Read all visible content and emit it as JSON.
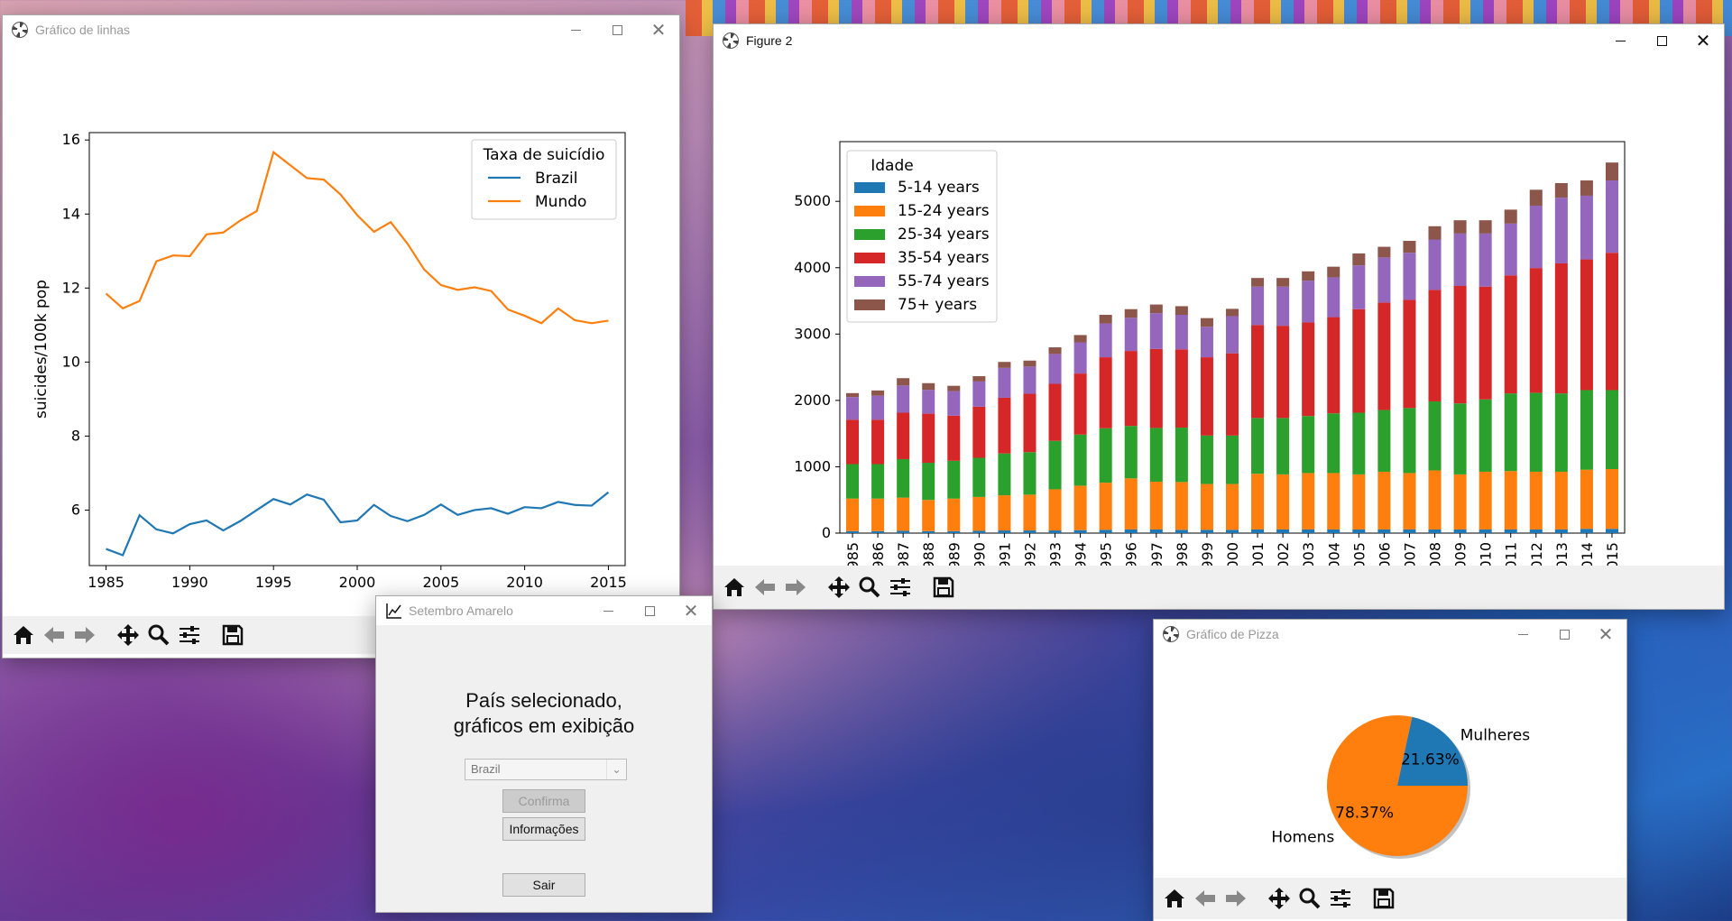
{
  "desktop": {
    "accent": "#e85a2a"
  },
  "line_window": {
    "title": "Gráfico de linhas",
    "chart_data": {
      "type": "line",
      "ylabel": "suicides/100k pop",
      "xlabel": "",
      "ylim": [
        4.5,
        16.2
      ],
      "xlim": [
        1984,
        2016
      ],
      "yticks": [
        "6",
        "8",
        "10",
        "12",
        "14",
        "16"
      ],
      "xticks": [
        "1985",
        "1990",
        "1995",
        "2000",
        "2005",
        "2010",
        "2015"
      ],
      "legend_title": "Taxa de suicídio",
      "legend_placement": "top-right",
      "x": [
        1985,
        1986,
        1987,
        1988,
        1989,
        1990,
        1991,
        1992,
        1993,
        1994,
        1995,
        1996,
        1997,
        1998,
        1999,
        2000,
        2001,
        2002,
        2003,
        2004,
        2005,
        2006,
        2007,
        2008,
        2009,
        2010,
        2011,
        2012,
        2013,
        2014,
        2015
      ],
      "series": [
        {
          "name": "Brazil",
          "color": "#1f77b4",
          "values": [
            4.95,
            4.78,
            5.86,
            5.48,
            5.37,
            5.62,
            5.72,
            5.45,
            5.7,
            6.0,
            6.3,
            6.15,
            6.42,
            6.28,
            5.67,
            5.72,
            6.14,
            5.84,
            5.7,
            5.87,
            6.15,
            5.87,
            6.0,
            6.05,
            5.9,
            6.08,
            6.05,
            6.22,
            6.14,
            6.12,
            6.48
          ]
        },
        {
          "name": "Mundo",
          "color": "#ff7f0e",
          "values": [
            11.85,
            11.45,
            11.65,
            12.72,
            12.88,
            12.86,
            13.45,
            13.5,
            13.82,
            14.08,
            15.67,
            15.32,
            14.97,
            14.93,
            14.53,
            13.97,
            13.52,
            13.78,
            13.2,
            12.5,
            12.08,
            11.95,
            12.02,
            11.92,
            11.42,
            11.25,
            11.05,
            11.45,
            11.13,
            11.05,
            11.12
          ]
        }
      ]
    }
  },
  "bar_window": {
    "title": "Figure 2",
    "chart_data": {
      "type": "bar",
      "stacked": true,
      "legend_title": "Idade",
      "legend_placement": "top-left",
      "ylim": [
        0,
        5900
      ],
      "yticks": [
        "0",
        "1000",
        "2000",
        "3000",
        "4000",
        "5000"
      ],
      "categories": [
        "1985",
        "1986",
        "1987",
        "1988",
        "1989",
        "1990",
        "1991",
        "1992",
        "1993",
        "1994",
        "1995",
        "1996",
        "1997",
        "1998",
        "1999",
        "2000",
        "2001",
        "2002",
        "2003",
        "2004",
        "2005",
        "2006",
        "2007",
        "2008",
        "2009",
        "2010",
        "2011",
        "2012",
        "2013",
        "2014",
        "2015"
      ],
      "series": [
        {
          "name": "5-14 years",
          "color": "#1f77b4",
          "values": [
            30,
            30,
            35,
            30,
            30,
            35,
            40,
            40,
            40,
            45,
            50,
            55,
            55,
            50,
            50,
            50,
            55,
            55,
            55,
            55,
            55,
            55,
            55,
            55,
            55,
            55,
            55,
            55,
            55,
            65,
            65
          ]
        },
        {
          "name": "15-24 years",
          "color": "#ff7f0e",
          "values": [
            490,
            490,
            500,
            470,
            490,
            510,
            530,
            540,
            620,
            670,
            710,
            770,
            720,
            720,
            690,
            690,
            840,
            830,
            850,
            850,
            830,
            870,
            850,
            890,
            830,
            870,
            880,
            870,
            870,
            890,
            900
          ]
        },
        {
          "name": "25-34 years",
          "color": "#2ca02c",
          "values": [
            520,
            520,
            580,
            560,
            570,
            590,
            630,
            640,
            730,
            770,
            820,
            790,
            810,
            820,
            730,
            730,
            840,
            850,
            860,
            900,
            930,
            930,
            980,
            1040,
            1070,
            1090,
            1170,
            1190,
            1180,
            1200,
            1190
          ]
        },
        {
          "name": "35-54 years",
          "color": "#d62728",
          "values": [
            670,
            670,
            700,
            740,
            680,
            770,
            840,
            880,
            860,
            920,
            1070,
            1130,
            1190,
            1180,
            1180,
            1240,
            1400,
            1390,
            1410,
            1450,
            1560,
            1620,
            1630,
            1680,
            1770,
            1700,
            1780,
            1880,
            1960,
            1970,
            2070
          ]
        },
        {
          "name": "55-74 years",
          "color": "#9467bd",
          "values": [
            340,
            360,
            410,
            360,
            370,
            380,
            450,
            410,
            450,
            470,
            510,
            500,
            540,
            520,
            460,
            560,
            580,
            590,
            630,
            600,
            660,
            680,
            710,
            760,
            790,
            800,
            780,
            940,
            990,
            960,
            1090
          ]
        },
        {
          "name": "75+ years",
          "color": "#8c564b",
          "values": [
            60,
            80,
            110,
            100,
            80,
            80,
            90,
            90,
            100,
            110,
            130,
            130,
            130,
            130,
            130,
            110,
            130,
            130,
            140,
            160,
            180,
            160,
            180,
            200,
            200,
            200,
            210,
            240,
            220,
            230,
            270
          ]
        }
      ]
    }
  },
  "dialog": {
    "title": "Setembro Amarelo",
    "heading_line1": "País selecionado,",
    "heading_line2": "gráficos em exibição",
    "country_value": "Brazil",
    "confirm_label": "Confirma",
    "info_label": "Informações",
    "exit_label": "Sair"
  },
  "pie_window": {
    "title": "Gráfico de Pizza",
    "chart_data": {
      "type": "pie",
      "labels": [
        "Mulheres",
        "Homens"
      ],
      "values": [
        21.63,
        78.37
      ],
      "value_labels": [
        "21.63%",
        "78.37%"
      ],
      "colors": [
        "#1f77b4",
        "#ff7f0e"
      ]
    }
  }
}
